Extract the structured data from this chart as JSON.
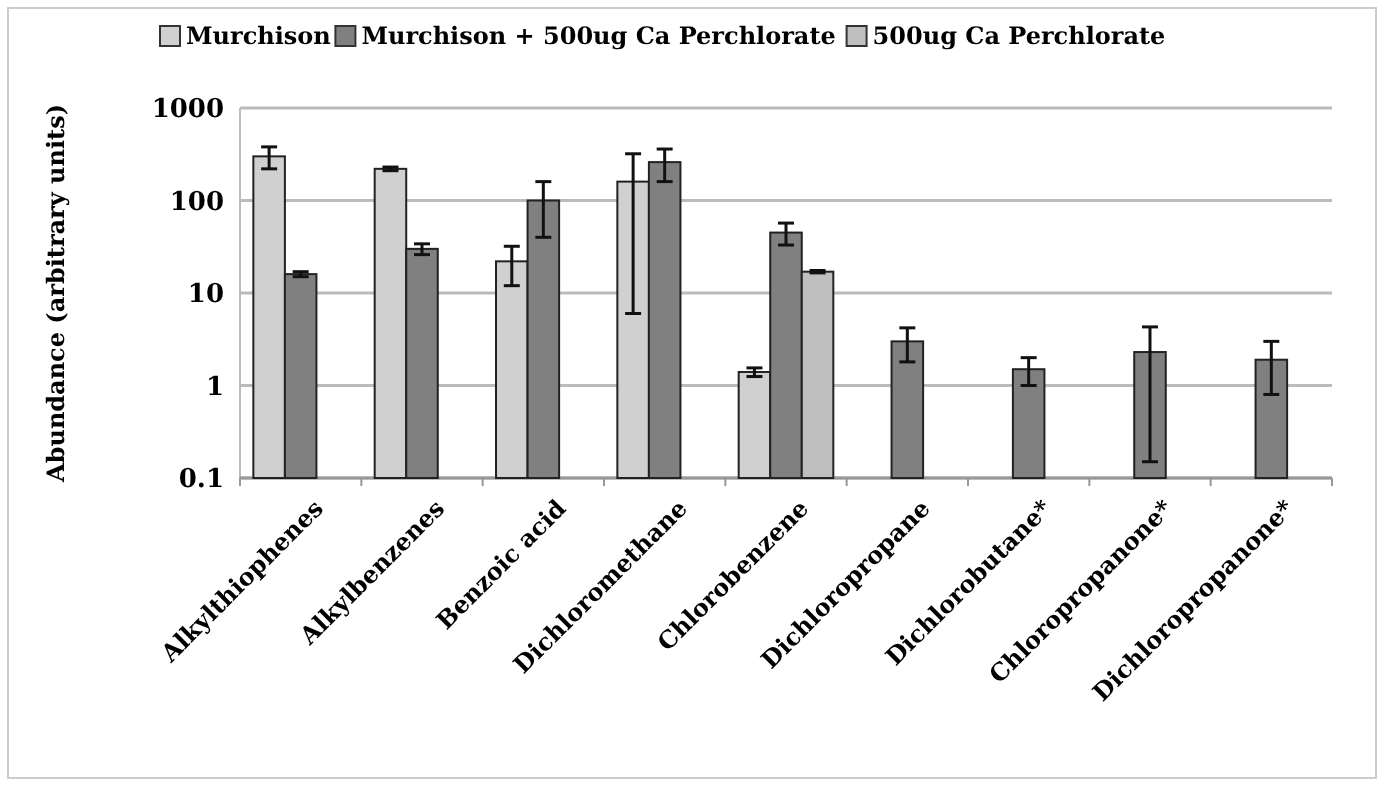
{
  "chart_data": {
    "type": "bar",
    "ylabel": "Abundance (arbitrary units)",
    "categories": [
      "Alkylthiophenes",
      "Alkylbenzenes",
      "Benzoic acid",
      "Dichloromethane",
      "Chlorobenzene",
      "Dichloropropane",
      "Dichlorobutane*",
      "Chloropropanone*",
      "Dichloropropanone*"
    ],
    "series": [
      {
        "name": "Murchison",
        "color": "#d0d0d0",
        "values": [
          300,
          220,
          22,
          160,
          1.4,
          null,
          null,
          null,
          null
        ],
        "errors": [
          80,
          10,
          10,
          [
            6,
            320
          ],
          0.15,
          null,
          null,
          null,
          null
        ]
      },
      {
        "name": "Murchison + 500ug Ca Perchlorate",
        "color": "#808080",
        "values": [
          16,
          30,
          100,
          260,
          45,
          3,
          1.5,
          2.3,
          1.9
        ],
        "errors": [
          1,
          4,
          60,
          100,
          12,
          1.2,
          0.5,
          [
            0.15,
            4.3
          ],
          [
            0.8,
            3
          ]
        ]
      },
      {
        "name": "500ug Ca Perchlorate",
        "color": "#bfbfbf",
        "values": [
          null,
          null,
          null,
          null,
          17,
          null,
          null,
          null,
          null
        ],
        "errors": [
          null,
          null,
          null,
          null,
          0.5,
          null,
          null,
          null,
          null
        ]
      }
    ],
    "log": true,
    "ylim": [
      0.1,
      1000
    ],
    "yticks": [
      0.1,
      1,
      10,
      100,
      1000
    ],
    "grid": "y",
    "legend": "top"
  }
}
